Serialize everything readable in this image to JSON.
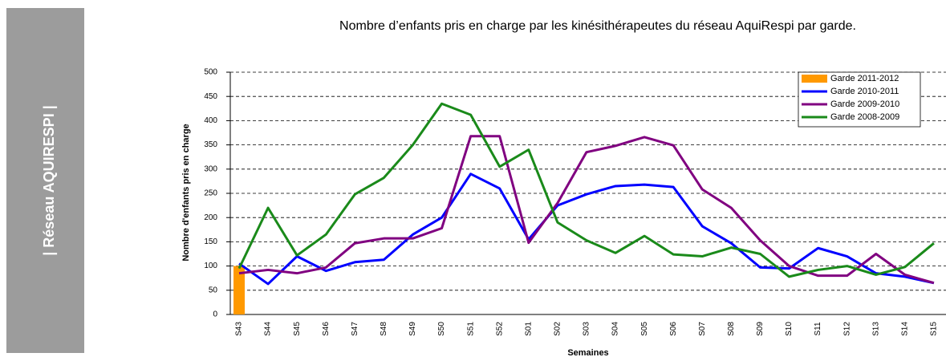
{
  "sidebar": {
    "label": "| Réseau AQUIRESPI |"
  },
  "chart_data": {
    "type": "line",
    "title": "Nombre d’enfants pris en charge par les kinésithérapeutes du réseau AquiRespi par garde.",
    "x_label": "Semaines",
    "y_label": "Nombre d'enfants pris en charge",
    "categories": [
      "S43",
      "S44",
      "S45",
      "S46",
      "S47",
      "S48",
      "S49",
      "S50",
      "S51",
      "S52",
      "S01",
      "S02",
      "S03",
      "S04",
      "S05",
      "S06",
      "S07",
      "S08",
      "S09",
      "S10",
      "S11",
      "S12",
      "S13",
      "S14",
      "S15"
    ],
    "ylim": [
      0,
      500
    ],
    "yticks": [
      0,
      50,
      100,
      150,
      200,
      250,
      300,
      350,
      400,
      450,
      500
    ],
    "grid": true,
    "legend": "top right",
    "series": [
      {
        "name": "Garde 2011-2012",
        "color": "#ff9900",
        "type": "bar",
        "values": [
          100,
          null,
          null,
          null,
          null,
          null,
          null,
          null,
          null,
          null,
          null,
          null,
          null,
          null,
          null,
          null,
          null,
          null,
          null,
          null,
          null,
          null,
          null,
          null,
          null
        ]
      },
      {
        "name": "Garde 2010-2011",
        "color": "#0000ff",
        "type": "line",
        "values": [
          105,
          63,
          120,
          90,
          108,
          113,
          165,
          200,
          290,
          260,
          155,
          225,
          248,
          265,
          268,
          263,
          182,
          147,
          97,
          95,
          137,
          120,
          85,
          78,
          65
        ]
      },
      {
        "name": "Garde 2009-2010",
        "color": "#800080",
        "type": "line",
        "values": [
          85,
          92,
          85,
          97,
          147,
          157,
          157,
          178,
          368,
          368,
          148,
          230,
          335,
          348,
          366,
          349,
          258,
          220,
          153,
          100,
          80,
          80,
          125,
          82,
          65
        ]
      },
      {
        "name": "Garde 2008-2009",
        "color": "#1a8a1a",
        "type": "line",
        "values": [
          95,
          220,
          122,
          165,
          248,
          282,
          350,
          435,
          412,
          305,
          340,
          190,
          153,
          127,
          162,
          124,
          120,
          138,
          125,
          78,
          92,
          100,
          82,
          98,
          147
        ]
      }
    ]
  }
}
